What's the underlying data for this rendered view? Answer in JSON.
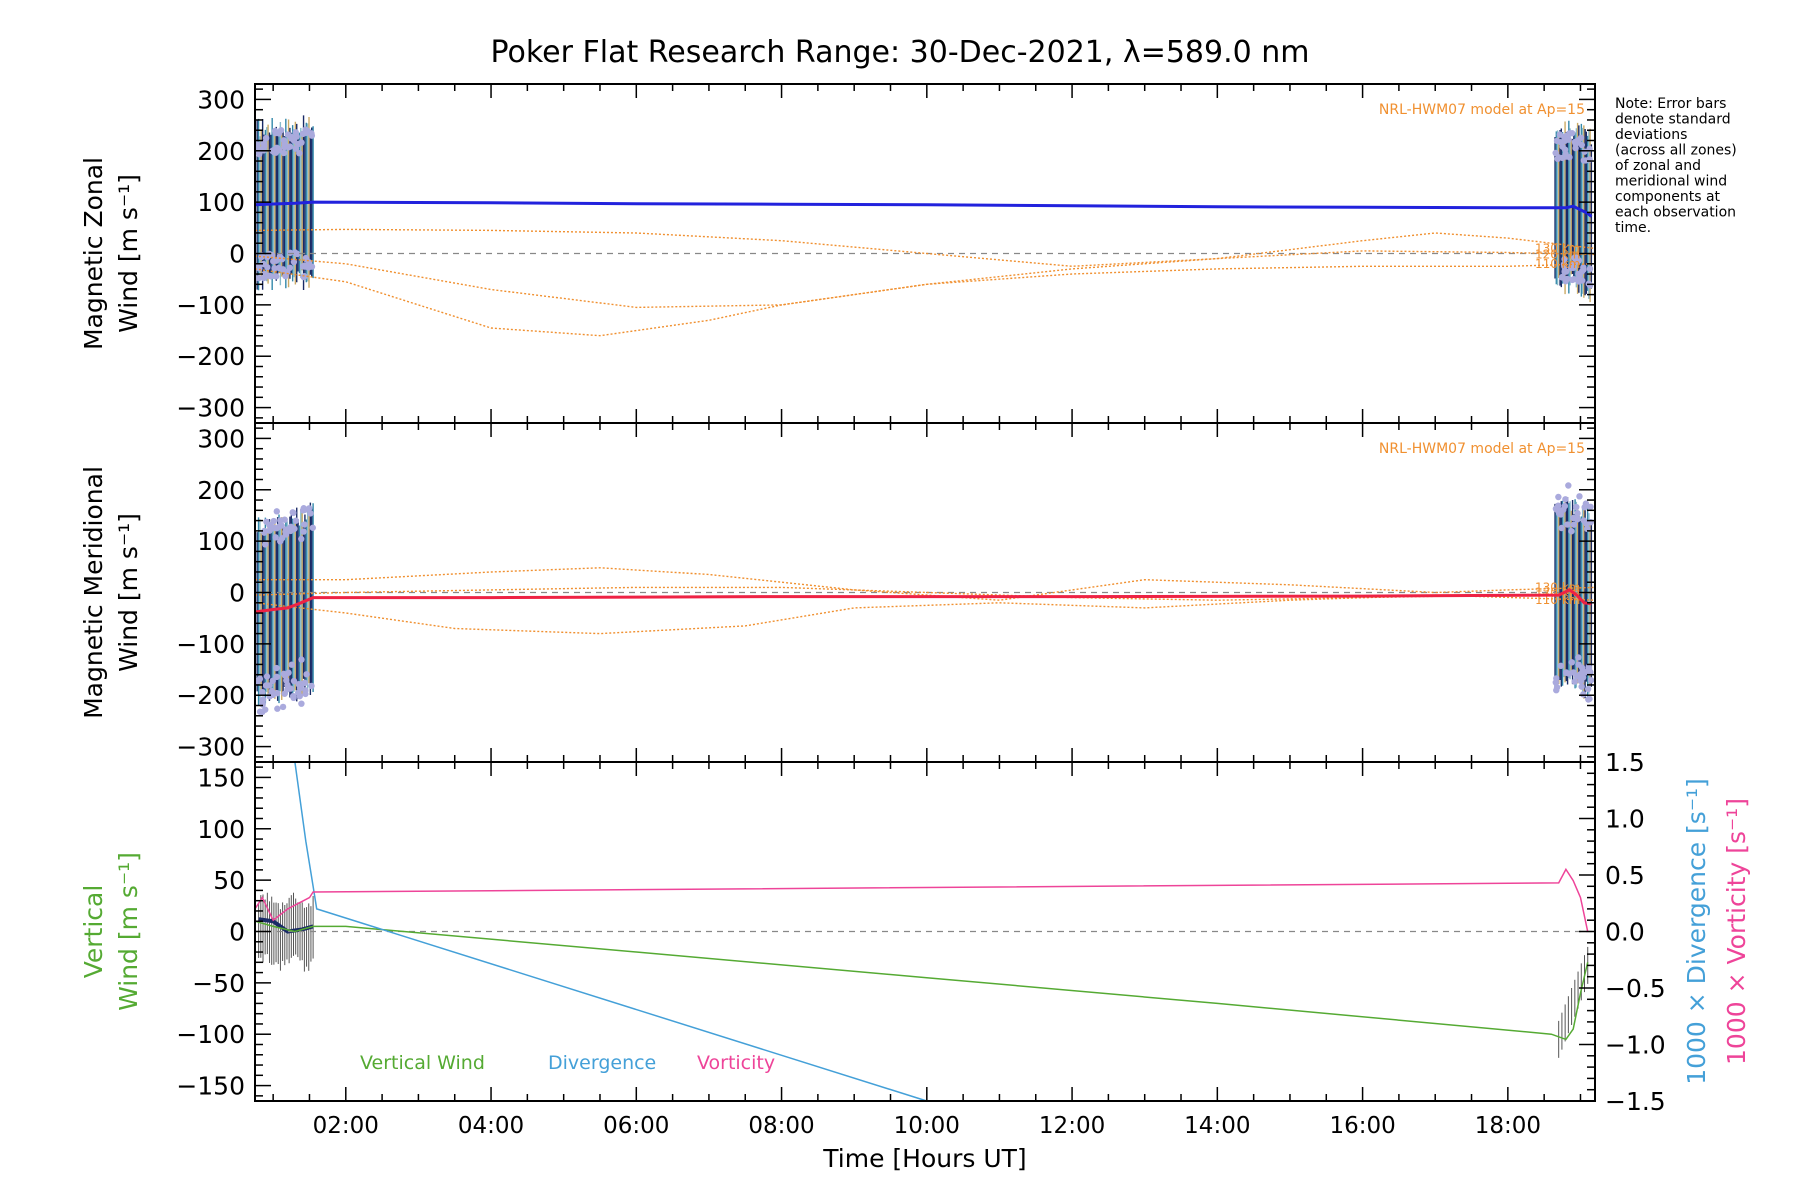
{
  "title": "Poker Flat Research Range: 30-Dec-2021, λ=589.0 nm",
  "note": [
    "Note: Error bars",
    "denote standard",
    "deviations",
    "(across all zones)",
    "of zonal and",
    "meridional wind",
    "components at",
    "each observation",
    "time."
  ],
  "colors": {
    "zonal": "#2222dd",
    "meridional": "#ee2244",
    "model": "#f09030",
    "vertical_wind": "#55aa33",
    "divergence": "#44a0d8",
    "vorticity": "#ee4499",
    "errorbar": "#1a2a66",
    "scatter": "#aaaadd"
  },
  "chart_data": [
    {
      "type": "line",
      "ylabel_line1": "Magnetic Zonal",
      "ylabel_line2": "Wind [m s⁻¹]",
      "xlim": [
        0.75,
        19.2
      ],
      "ylim": [
        -330,
        330
      ],
      "yticks": [
        300,
        200,
        100,
        0,
        -100,
        -200,
        -300
      ],
      "grid": false,
      "model_label": "NRL-HWM07 model at Ap=15",
      "series": [
        {
          "name": "Magnetic Zonal Wind",
          "x": [
            0.75,
            0.9,
            1.1,
            1.3,
            1.55,
            4,
            6,
            8,
            10,
            12,
            14,
            16,
            18,
            18.8,
            18.9,
            19.0,
            19.1,
            19.15
          ],
          "y": [
            95,
            96,
            97,
            98,
            100,
            99,
            97,
            96,
            95,
            93,
            91,
            90,
            89,
            89,
            92,
            85,
            78,
            72
          ]
        }
      ],
      "model_curves": [
        {
          "label": "130 km",
          "x": [
            0.75,
            2,
            4,
            6,
            8,
            10,
            12,
            14,
            16,
            17,
            18,
            19.2
          ],
          "y": [
            45,
            47,
            45,
            40,
            25,
            0,
            -25,
            -10,
            25,
            40,
            30,
            10
          ]
        },
        {
          "label": "120 km",
          "x": [
            0.75,
            2,
            4,
            6,
            8,
            10,
            12,
            14,
            16,
            18,
            19.2
          ],
          "y": [
            -5,
            -20,
            -70,
            -105,
            -100,
            -60,
            -30,
            -10,
            5,
            2,
            -2
          ]
        },
        {
          "label": "110 km",
          "x": [
            0.75,
            2,
            3,
            4,
            5.5,
            7,
            8,
            10,
            12,
            14,
            16,
            18,
            19.2
          ],
          "y": [
            -30,
            -55,
            -100,
            -145,
            -160,
            -130,
            -100,
            -60,
            -40,
            -30,
            -25,
            -25,
            -20
          ]
        }
      ]
    },
    {
      "type": "line",
      "ylabel_line1": "Magnetic Meridional",
      "ylabel_line2": "Wind [m s⁻¹]",
      "xlim": [
        0.75,
        19.2
      ],
      "ylim": [
        -330,
        330
      ],
      "yticks": [
        300,
        200,
        100,
        0,
        -100,
        -200,
        -300
      ],
      "grid": false,
      "model_label": "NRL-HWM07 model at Ap=15",
      "series": [
        {
          "name": "Magnetic Meridional Wind",
          "x": [
            0.75,
            0.9,
            1.0,
            1.2,
            1.35,
            1.55,
            4,
            8,
            12,
            16,
            18.7,
            18.85,
            18.95,
            19.05,
            19.15
          ],
          "y": [
            -38,
            -35,
            -33,
            -30,
            -22,
            -10,
            -10,
            -8,
            -8,
            -7,
            -5,
            5,
            -5,
            -20,
            -22
          ]
        }
      ],
      "model_curves": [
        {
          "label": "130 km",
          "x": [
            0.75,
            2,
            4,
            5.5,
            7,
            9,
            11,
            13,
            15,
            17,
            18,
            19.2
          ],
          "y": [
            25,
            25,
            40,
            48,
            35,
            5,
            -15,
            25,
            15,
            0,
            5,
            10
          ]
        },
        {
          "label": "120 km",
          "x": [
            0.75,
            2,
            4,
            6,
            8,
            10,
            12,
            14,
            16,
            18,
            19.2
          ],
          "y": [
            -5,
            0,
            5,
            10,
            10,
            0,
            -10,
            -15,
            -10,
            -5,
            0
          ]
        },
        {
          "label": "110 km",
          "x": [
            0.75,
            2,
            3.5,
            5.5,
            7.5,
            9,
            11,
            13,
            15,
            17,
            19.2
          ],
          "y": [
            -20,
            -40,
            -70,
            -80,
            -65,
            -30,
            -20,
            -30,
            -15,
            -5,
            -15
          ]
        }
      ]
    },
    {
      "type": "line",
      "ylabel_line1": "Vertical",
      "ylabel_line2": "Wind [m s⁻¹]",
      "y2label_div": "1000 × Divergence [s⁻¹]",
      "y2label_vor": "1000 × Vorticity [s⁻¹]",
      "xlabel": "Time [Hours UT]",
      "xlim": [
        0.75,
        19.2
      ],
      "ylim": [
        -165,
        165
      ],
      "y2lim": [
        -1.5,
        1.5
      ],
      "yticks": [
        150,
        100,
        50,
        0,
        -50,
        -100,
        -150
      ],
      "y2ticks": [
        1.5,
        1.0,
        0.5,
        0.0,
        -0.5,
        -1.0,
        -1.5
      ],
      "xtick_labels": [
        "02:00",
        "04:00",
        "06:00",
        "08:00",
        "10:00",
        "12:00",
        "14:00",
        "16:00",
        "18:00"
      ],
      "xtick_values": [
        2,
        4,
        6,
        8,
        10,
        12,
        14,
        16,
        18
      ],
      "grid": false,
      "legend": [
        "Vertical Wind",
        "Divergence",
        "Vorticity"
      ],
      "series": [
        {
          "name": "Vertical Wind",
          "axis": "left",
          "x": [
            0.75,
            1.0,
            1.3,
            1.55,
            2,
            6,
            10,
            14,
            18.6,
            18.8,
            18.9,
            19.0,
            19.1
          ],
          "y": [
            10,
            5,
            0,
            5,
            5,
            -20,
            -45,
            -70,
            -100,
            -105,
            -95,
            -60,
            -30
          ]
        },
        {
          "name": "Divergence",
          "axis": "right",
          "x": [
            1.3,
            1.45,
            1.55,
            1.6,
            10
          ],
          "y": [
            1.5,
            0.8,
            0.4,
            0.2,
            -1.6
          ]
        },
        {
          "name": "Vorticity",
          "axis": "right",
          "x": [
            0.75,
            0.85,
            1.0,
            1.2,
            1.5,
            1.55,
            18.7,
            18.8,
            18.9,
            19.0,
            19.1
          ],
          "y": [
            0.2,
            0.3,
            0.1,
            0.2,
            0.3,
            0.35,
            0.43,
            0.55,
            0.45,
            0.3,
            0.0
          ]
        }
      ]
    }
  ]
}
